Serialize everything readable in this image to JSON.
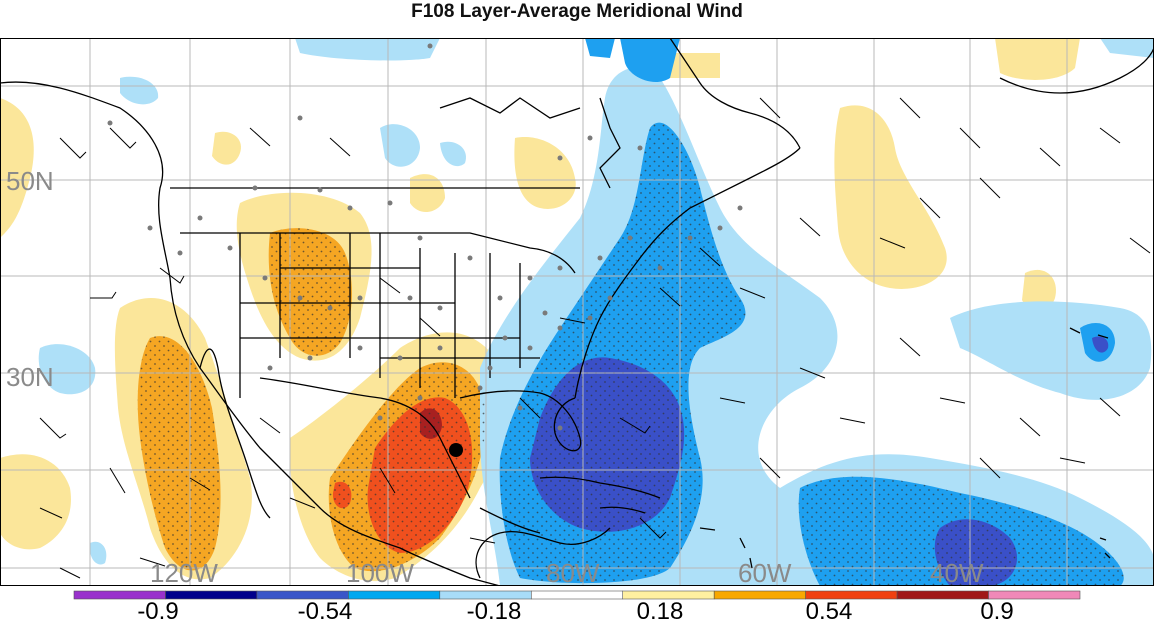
{
  "title": "F108 Layer-Average Meridional Wind",
  "lat_labels": [
    "50N",
    "30N"
  ],
  "lon_labels": [
    "120W",
    "100W",
    "80W",
    "60W",
    "40W"
  ],
  "colorbar": {
    "tick_labels": [
      "-0.9",
      "-0.54",
      "-0.18",
      "0.18",
      "0.54",
      "0.9"
    ],
    "colors": [
      "#9932cc",
      "#00008b",
      "#3a56c8",
      "#00a8f0",
      "#a8dcf8",
      "#ffffff",
      "#fff0a0",
      "#f8a800",
      "#f04010",
      "#a01818",
      "#f088b8"
    ]
  },
  "colors": {
    "strong_negative": "#3a50c8",
    "negative": "#1ea0f0",
    "weak_negative": "#aee0f8",
    "weak_positive": "#fbe69a",
    "positive": "#f5a623",
    "strong_positive": "#f0501e",
    "very_strong_positive": "#a82020"
  }
}
